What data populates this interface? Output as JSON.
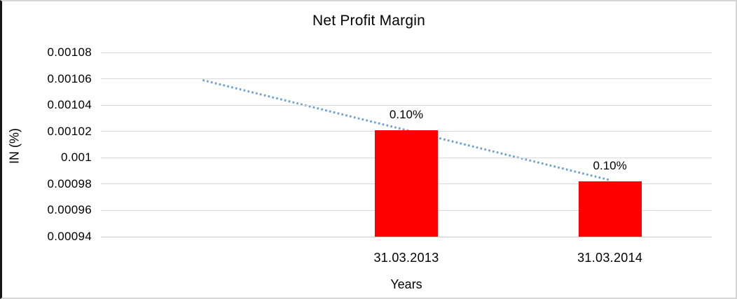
{
  "chart_data": {
    "type": "bar",
    "title": "Net Profit Margin",
    "xlabel": "Years",
    "ylabel": "IN (%)",
    "categories": [
      "31.03.2013",
      "31.03.2014"
    ],
    "values": [
      0.001021,
      0.000982
    ],
    "data_labels": [
      "0.10%",
      "0.10%"
    ],
    "ylim": [
      0.00094,
      0.00108
    ],
    "ytick_step": 2e-05,
    "ytick_labels_top_to_bottom": [
      "0.00108",
      "0.00106",
      "0.00104",
      "0.00102",
      "0.001",
      "0.00098",
      "0.00096",
      "0.00094"
    ],
    "grid": true,
    "legend": "none",
    "bar_color": "#ff0000",
    "gridline_color": "#d9d9d9",
    "trendline": {
      "style": "dotted",
      "color": "#6BA0D8",
      "start_value": 0.001059,
      "end_value": 0.000983,
      "start_slot": 0,
      "end_slot": 2
    },
    "layout": {
      "slots": 3,
      "category_slots": [
        1,
        2
      ]
    }
  }
}
